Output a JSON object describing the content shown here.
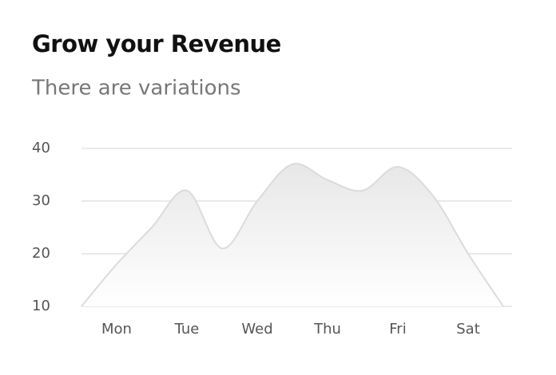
{
  "chart_data": {
    "type": "area",
    "title": "Grow your Revenue",
    "subtitle": "There are variations",
    "categories": [
      null,
      "Mon",
      null,
      "Tue",
      null,
      "Wed",
      null,
      "Thu",
      null,
      "Fri",
      null,
      "Sat",
      null
    ],
    "values": [
      10,
      18,
      25,
      32,
      21,
      30,
      37,
      34,
      32,
      36.5,
      31,
      20,
      10
    ],
    "color": "#dcdbdc",
    "ylim": [
      10,
      40
    ],
    "yticks": [
      10,
      20,
      30,
      40
    ],
    "grid": true
  }
}
